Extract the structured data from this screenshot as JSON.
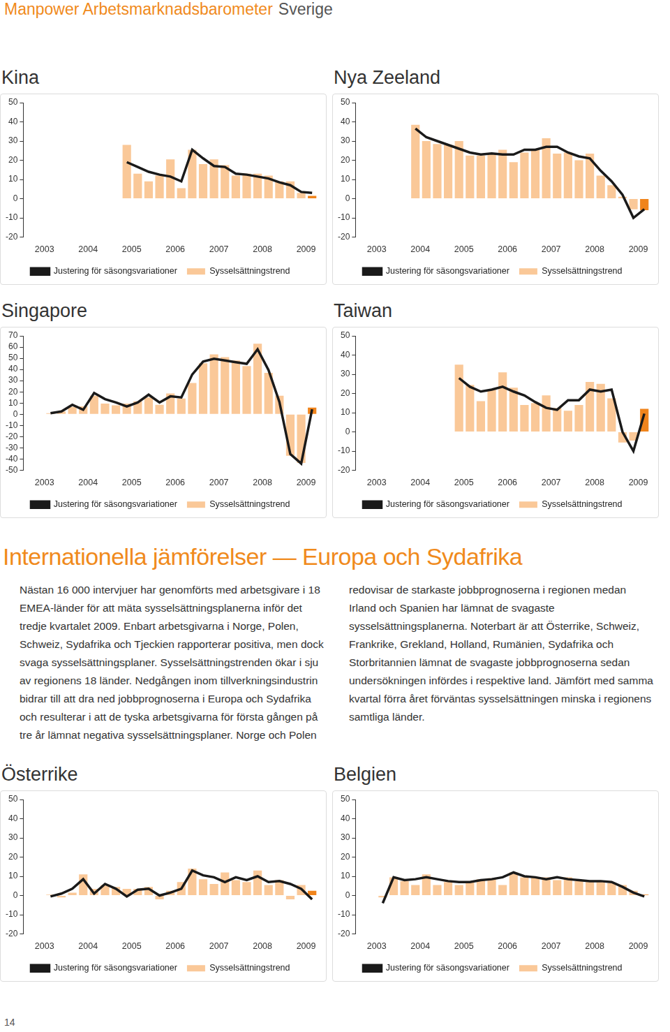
{
  "header": {
    "title": "Manpower Arbetsmarknadsbarometer",
    "country": "Sverige"
  },
  "section_title": "Internationella jämförelser — Europa och Sydafrika",
  "body": "Nästan 16 000 intervjuer har genomförts med arbetsgivare i 18 EMEA-länder för att mäta sysselsättningsplanerna inför det tredje kvartalet 2009. Enbart arbetsgivarna i Norge, Polen, Schweiz, Sydafrika och Tjeckien rapporterar positiva, men dock svaga sysselsättningsplaner. Sysselsättningstrenden ökar i sju av regionens 18 länder. Nedgången inom tillverkningsindustrin bidrar till att dra ned jobbprognoserna i Europa och Sydafrika och resulterar i att de tyska arbetsgivarna för första gången på tre år lämnat negativa sysselsättningsplaner. Norge och Polen redovisar de starkaste jobbprognoserna i regionen medan Irland och Spanien har lämnat de svagaste sysselsättningsplanerna. Noterbart är att Österrike, Schweiz, Frankrike, Grekland, Holland, Rumänien, Sydafrika och Storbritannien lämnat de svagaste jobbprognoserna sedan undersökningen infördes i respektive land. Jämfört med samma kvartal förra året förväntas sysselsättningen minska i regionens samtliga länder.",
  "page_number": "14",
  "chart_data": [
    {
      "type": "bar",
      "title": "Kina",
      "legend": "bottom",
      "grid": false,
      "categories": [
        null,
        "2003",
        null,
        null,
        null,
        "2004",
        null,
        null,
        null,
        "2005",
        null,
        null,
        null,
        "2006",
        null,
        null,
        null,
        "2007",
        null,
        null,
        null,
        "2008",
        null,
        null,
        null,
        "2009",
        null
      ],
      "ylim": [
        -20,
        50
      ],
      "yticks": [
        -20,
        -10,
        0,
        10,
        20,
        30,
        40,
        50
      ],
      "series": [
        {
          "name": "Justering för säsongsvariationer",
          "type": "line",
          "color": "#1a1a1a",
          "marker": "none",
          "line_style": "solid",
          "values": [
            null,
            null,
            null,
            null,
            null,
            null,
            null,
            null,
            null,
            19,
            16.5,
            14,
            12.5,
            11.5,
            9,
            25.5,
            21,
            17,
            16.5,
            13,
            12.5,
            11.5,
            10.5,
            8.5,
            7,
            3.5,
            3
          ]
        },
        {
          "name": "Sysselsättningstrend",
          "type": "bar",
          "color": "#fac898",
          "colors": [
            "#fac898",
            "#fac898",
            "#fac898",
            "#fac898",
            "#fac898",
            "#fac898",
            "#fac898",
            "#fac898",
            "#fac898",
            "#fac898",
            "#fac898",
            "#fac898",
            "#fac898",
            "#fac898",
            "#fac898",
            "#fac898",
            "#fac898",
            "#fac898",
            "#fac898",
            "#fac898",
            "#fac898",
            "#fac898",
            "#fac898",
            "#fac898",
            "#fac898",
            "#fac898",
            "#f0841c"
          ],
          "values": [
            null,
            null,
            null,
            null,
            null,
            null,
            null,
            null,
            null,
            28,
            13,
            9,
            12,
            20.5,
            5.5,
            25.5,
            18,
            20.5,
            17.5,
            12,
            13,
            13,
            12,
            9,
            9,
            3,
            1.5
          ]
        }
      ]
    },
    {
      "type": "bar",
      "title": "Nya Zeeland",
      "legend": "bottom",
      "grid": false,
      "categories": [
        null,
        "2003",
        null,
        null,
        null,
        "2004",
        null,
        null,
        null,
        "2005",
        null,
        null,
        null,
        "2006",
        null,
        null,
        null,
        "2007",
        null,
        null,
        null,
        "2008",
        null,
        null,
        null,
        "2009",
        null
      ],
      "ylim": [
        -20,
        50
      ],
      "yticks": [
        -20,
        -10,
        0,
        10,
        20,
        30,
        40,
        50
      ],
      "series": [
        {
          "name": "Justering för säsongsvariationer",
          "type": "line",
          "color": "#1a1a1a",
          "marker": "none",
          "line_style": "solid",
          "values": [
            null,
            null,
            null,
            null,
            null,
            36.5,
            32,
            30,
            28,
            26,
            24,
            23,
            23.5,
            23,
            23,
            25.5,
            25.5,
            27,
            27,
            24,
            22,
            21,
            14.5,
            9,
            2,
            -10,
            -5.5
          ]
        },
        {
          "name": "Sysselsättningstrend",
          "type": "bar",
          "color": "#fac898",
          "colors": [
            "#fac898",
            "#fac898",
            "#fac898",
            "#fac898",
            "#fac898",
            "#fac898",
            "#fac898",
            "#fac898",
            "#fac898",
            "#fac898",
            "#fac898",
            "#fac898",
            "#fac898",
            "#fac898",
            "#fac898",
            "#fac898",
            "#fac898",
            "#fac898",
            "#fac898",
            "#fac898",
            "#fac898",
            "#fac898",
            "#fac898",
            "#fac898",
            "#fac898",
            "#fac898",
            "#f0841c"
          ],
          "values": [
            null,
            null,
            null,
            null,
            null,
            38.5,
            30,
            28.5,
            28,
            30,
            22.5,
            22.5,
            23.5,
            25.5,
            19,
            24,
            25.5,
            31.5,
            23.5,
            24,
            20,
            23.5,
            12,
            7,
            1,
            -5.5,
            -6
          ]
        }
      ]
    },
    {
      "type": "bar",
      "title": "Singapore",
      "legend": "bottom",
      "grid": false,
      "categories": [
        null,
        "2003",
        null,
        null,
        null,
        "2004",
        null,
        null,
        null,
        "2005",
        null,
        null,
        null,
        "2006",
        null,
        null,
        null,
        "2007",
        null,
        null,
        null,
        "2008",
        null,
        null,
        null,
        "2009",
        null
      ],
      "ylim": [
        -50,
        70
      ],
      "yticks": [
        -50,
        -40,
        -30,
        -20,
        -10,
        0,
        10,
        20,
        30,
        40,
        50,
        60,
        70
      ],
      "series": [
        {
          "name": "Justering för säsongsvariationer",
          "type": "line",
          "color": "#1a1a1a",
          "marker": "none",
          "line_style": "solid",
          "values": [
            null,
            null,
            1,
            2.5,
            8.5,
            4,
            19,
            13.5,
            10.5,
            7,
            10.5,
            17.5,
            10.5,
            16,
            15,
            35.5,
            47,
            49.5,
            48,
            46.5,
            45,
            58,
            39.5,
            11,
            -35.5,
            -44,
            4.5
          ]
        },
        {
          "name": "Sysselsättningstrend",
          "type": "bar",
          "color": "#fac898",
          "colors": [
            "#fac898",
            "#fac898",
            "#fac898",
            "#fac898",
            "#fac898",
            "#fac898",
            "#fac898",
            "#fac898",
            "#fac898",
            "#fac898",
            "#fac898",
            "#fac898",
            "#fac898",
            "#fac898",
            "#fac898",
            "#fac898",
            "#fac898",
            "#fac898",
            "#fac898",
            "#fac898",
            "#fac898",
            "#fac898",
            "#fac898",
            "#fac898",
            "#fac898",
            "#fac898",
            "#f0841c"
          ],
          "values": [
            null,
            null,
            1,
            2.5,
            6.5,
            7,
            16.5,
            9.5,
            8,
            9.5,
            11.5,
            15,
            8.5,
            18.5,
            14,
            28,
            45.5,
            53.5,
            51,
            48,
            43,
            63,
            37,
            16.5,
            -37,
            -43.5,
            6
          ]
        }
      ]
    },
    {
      "type": "bar",
      "title": "Taiwan",
      "legend": "bottom",
      "grid": false,
      "categories": [
        null,
        "2003",
        null,
        null,
        null,
        "2004",
        null,
        null,
        null,
        "2005",
        null,
        null,
        null,
        "2006",
        null,
        null,
        null,
        "2007",
        null,
        null,
        null,
        "2008",
        null,
        null,
        null,
        "2009",
        null
      ],
      "ylim": [
        -20,
        50
      ],
      "yticks": [
        -20,
        -10,
        0,
        10,
        20,
        30,
        40,
        50
      ],
      "series": [
        {
          "name": "Justering för säsongsvariationer",
          "type": "line",
          "color": "#1a1a1a",
          "marker": "none",
          "line_style": "solid",
          "values": [
            null,
            null,
            null,
            null,
            null,
            null,
            null,
            null,
            null,
            28,
            23.5,
            21,
            22,
            23.5,
            21,
            19,
            15.5,
            12.5,
            11.5,
            16.5,
            16.5,
            22,
            21,
            22,
            0,
            -10,
            9.5
          ]
        },
        {
          "name": "Sysselsättningstrend",
          "type": "bar",
          "color": "#fac898",
          "colors": [
            "#fac898",
            "#fac898",
            "#fac898",
            "#fac898",
            "#fac898",
            "#fac898",
            "#fac898",
            "#fac898",
            "#fac898",
            "#fac898",
            "#fac898",
            "#fac898",
            "#fac898",
            "#fac898",
            "#fac898",
            "#fac898",
            "#fac898",
            "#fac898",
            "#fac898",
            "#fac898",
            "#fac898",
            "#fac898",
            "#fac898",
            "#fac898",
            "#fac898",
            "#fac898",
            "#f0841c"
          ],
          "values": [
            null,
            null,
            null,
            null,
            null,
            null,
            null,
            null,
            null,
            35,
            24.5,
            16,
            22,
            31,
            23,
            14,
            15,
            19,
            12.5,
            11,
            14,
            26,
            25,
            17.5,
            -5.5,
            -4.5,
            12
          ]
        }
      ]
    },
    {
      "type": "bar",
      "title": "Österrike",
      "legend": "bottom",
      "grid": false,
      "categories": [
        null,
        "2003",
        null,
        null,
        null,
        "2004",
        null,
        null,
        null,
        "2005",
        null,
        null,
        null,
        "2006",
        null,
        null,
        null,
        "2007",
        null,
        null,
        null,
        "2008",
        null,
        null,
        null,
        "2009",
        null
      ],
      "ylim": [
        -20,
        50
      ],
      "yticks": [
        -20,
        -10,
        0,
        10,
        20,
        30,
        40,
        50
      ],
      "series": [
        {
          "name": "Justering för säsongsvariationer",
          "type": "line",
          "color": "#1a1a1a",
          "marker": "none",
          "line_style": "solid",
          "values": [
            null,
            null,
            -0.5,
            1,
            3.5,
            8.5,
            1,
            6,
            3.5,
            -0.5,
            3,
            3.5,
            0,
            1.5,
            3.5,
            13,
            10.5,
            9.5,
            7,
            9.5,
            8,
            10,
            7,
            7.5,
            6,
            3.5,
            -2
          ]
        },
        {
          "name": "Sysselsättningstrend",
          "type": "bar",
          "color": "#fac898",
          "colors": [
            "#fac898",
            "#fac898",
            "#fac898",
            "#fac898",
            "#fac898",
            "#fac898",
            "#fac898",
            "#fac898",
            "#fac898",
            "#fac898",
            "#fac898",
            "#fac898",
            "#fac898",
            "#fac898",
            "#fac898",
            "#fac898",
            "#fac898",
            "#fac898",
            "#fac898",
            "#fac898",
            "#fac898",
            "#fac898",
            "#fac898",
            "#fac898",
            "#fac898",
            "#fac898",
            "#f0841c"
          ],
          "values": [
            null,
            null,
            0.5,
            -1,
            1.5,
            11,
            3.5,
            5.5,
            4.5,
            3.5,
            3.5,
            4.5,
            -2,
            2.5,
            7,
            14,
            8.5,
            6,
            12,
            8,
            7,
            13,
            5.5,
            8,
            -2,
            5.5,
            2.5
          ]
        }
      ]
    },
    {
      "type": "bar",
      "title": "Belgien",
      "legend": "bottom",
      "grid": false,
      "categories": [
        null,
        "2003",
        null,
        null,
        null,
        "2004",
        null,
        null,
        null,
        "2005",
        null,
        null,
        null,
        "2006",
        null,
        null,
        null,
        "2007",
        null,
        null,
        null,
        "2008",
        null,
        null,
        null,
        "2009",
        null
      ],
      "ylim": [
        -20,
        50
      ],
      "yticks": [
        -20,
        -10,
        0,
        10,
        20,
        30,
        40,
        50
      ],
      "series": [
        {
          "name": "Justering för säsongsvariationer",
          "type": "line",
          "color": "#1a1a1a",
          "marker": "none",
          "line_style": "solid",
          "values": [
            null,
            null,
            -4,
            9.5,
            8,
            8.5,
            9.5,
            8.5,
            7.5,
            7,
            7,
            8,
            8.5,
            9.5,
            12,
            10,
            9.5,
            8.5,
            9.5,
            8.5,
            8,
            7.5,
            7.5,
            7,
            4.5,
            1.5,
            -0.5
          ]
        },
        {
          "name": "Sysselsättningstrend",
          "type": "bar",
          "color": "#fac898",
          "colors": [
            "#fac898",
            "#fac898",
            "#fac898",
            "#fac898",
            "#fac898",
            "#fac898",
            "#fac898",
            "#fac898",
            "#fac898",
            "#fac898",
            "#fac898",
            "#fac898",
            "#fac898",
            "#fac898",
            "#fac898",
            "#fac898",
            "#fac898",
            "#fac898",
            "#fac898",
            "#fac898",
            "#fac898",
            "#fac898",
            "#fac898",
            "#fac898",
            "#fac898",
            "#fac898",
            "#f0841c"
          ],
          "values": [
            null,
            null,
            -1,
            9.5,
            7.5,
            5.5,
            11,
            5.5,
            7,
            5.5,
            7,
            8.5,
            9,
            5.5,
            12,
            9.5,
            9.5,
            9.5,
            8,
            9.5,
            7.5,
            7,
            7,
            6.5,
            5.5,
            2.5,
            0.5
          ]
        }
      ]
    }
  ]
}
